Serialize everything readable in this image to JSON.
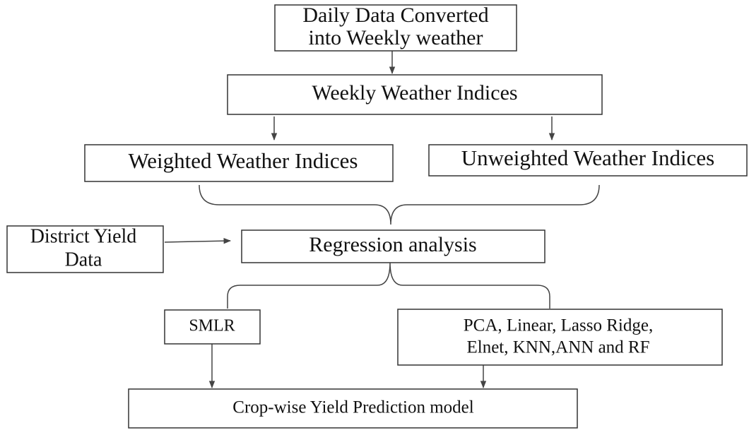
{
  "nodes": [
    {
      "lines": [
        "Daily Data Converted",
        "into Weekly weather"
      ]
    },
    {
      "lines": [
        "Weekly Weather Indices"
      ]
    },
    {
      "lines": [
        "Weighted Weather Indices"
      ]
    },
    {
      "lines": [
        "Unweighted Weather Indices"
      ]
    },
    {
      "lines": [
        "District Yield",
        "Data"
      ]
    },
    {
      "lines": [
        "Regression analysis"
      ]
    },
    {
      "lines": [
        "SMLR"
      ]
    },
    {
      "lines": [
        "PCA, Linear, Lasso Ridge,",
        "Elnet, KNN,ANN and RF"
      ]
    },
    {
      "lines": [
        "Crop-wise Yield Prediction model"
      ]
    }
  ]
}
